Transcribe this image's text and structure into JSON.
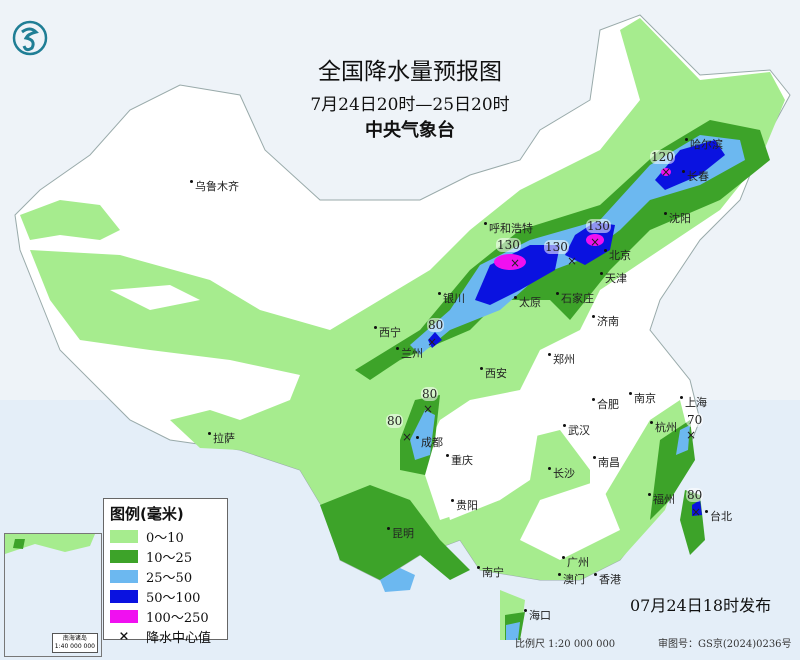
{
  "title": "全国降水量预报图",
  "period": "7月24日20时—25日20时",
  "issuer": "中央气象台",
  "colors": {
    "sea": "#e4eef8",
    "land": "#ffffff",
    "r0_10": "#a6ec8e",
    "r10_25": "#3da329",
    "r25_50": "#6cb8f0",
    "r50_100": "#0a12e0",
    "r100_250": "#f010f0"
  },
  "legend": {
    "title": "图例(毫米)",
    "items": [
      {
        "label": "0～10",
        "color": "#a6ec8e"
      },
      {
        "label": "10～25",
        "color": "#3da329"
      },
      {
        "label": "25～50",
        "color": "#6cb8f0"
      },
      {
        "label": "50～100",
        "color": "#0a12e0"
      },
      {
        "label": "100～250",
        "color": "#f010f0"
      }
    ],
    "center_marker": "×",
    "center_label": "降水中心值"
  },
  "cities": [
    "乌鲁木齐",
    "哈尔滨",
    "长春",
    "沈阳",
    "呼和浩特",
    "北京",
    "天津",
    "石家庄",
    "太原",
    "济南",
    "银川",
    "西宁",
    "兰州",
    "西安",
    "郑州",
    "合肥",
    "南京",
    "上海",
    "杭州",
    "武汉",
    "成都",
    "重庆",
    "拉萨",
    "长沙",
    "南昌",
    "福州",
    "台北",
    "贵阳",
    "昆明",
    "南宁",
    "广州",
    "澳门",
    "香港",
    "海口"
  ],
  "center_values": [
    "130",
    "130",
    "130",
    "120",
    "80",
    "80",
    "80",
    "70",
    "80"
  ],
  "inset": {
    "title": "南海诸岛",
    "scale": "1:40 000 000"
  },
  "published": "07月24日18时发布",
  "scale": "比例尺 1:20 000 000",
  "review_no": "审图号：GS京(2024)0236号"
}
